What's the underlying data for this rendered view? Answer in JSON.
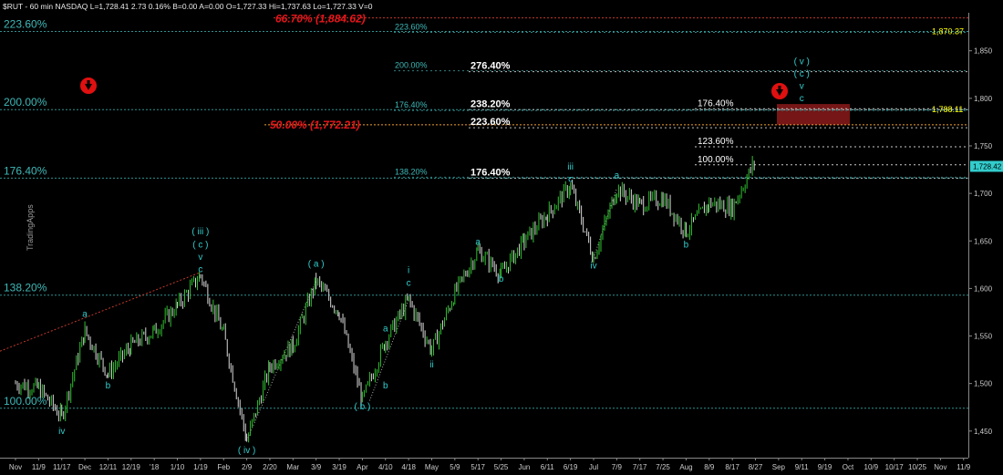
{
  "header": {
    "text": "$RUT - 60 min  NASDAQ  L=1,728.41  2.73  0.16%  B=0.00  A=0.00  O=1,727.33  Hi=1,737.63  Lo=1,727.33  V=0"
  },
  "watermark": "TradingApps",
  "colors": {
    "background": "#000000",
    "up_bar": "#2fbf2f",
    "down_bar": "#d9d9d9",
    "wave_label": "#33cccc",
    "fib_label": "#3fb8b8",
    "red_text": "#e8151b",
    "yellow_text": "#ffff00",
    "zone_fill": "#8b1a1a"
  },
  "chart_data": {
    "type": "line",
    "title": "",
    "subtitle": "",
    "xlabel": "",
    "ylabel": "",
    "ylim": [
      1422,
      1890
    ],
    "grid": false,
    "x_tick_labels": [
      "Nov",
      "11/9",
      "11/17",
      "Dec",
      "12/11",
      "12/19",
      "'18",
      "1/10",
      "1/19",
      "Feb",
      "2/9",
      "2/20",
      "Mar",
      "3/9",
      "3/19",
      "Apr",
      "4/10",
      "4/18",
      "May",
      "5/9",
      "5/17",
      "5/25",
      "Jun",
      "6/11",
      "6/19",
      "Jul",
      "7/9",
      "7/17",
      "7/25",
      "Aug",
      "8/9",
      "8/17",
      "8/27",
      "Sep",
      "9/11",
      "9/19",
      "Oct",
      "10/9",
      "10/17",
      "10/25",
      "Nov",
      "11/9"
    ],
    "y_tick_labels": [
      "1,450",
      "1,500",
      "1,550",
      "1,600",
      "1,650",
      "1,700",
      "1,750",
      "1,800",
      "1,850"
    ],
    "series": [
      {
        "values": [
          {
            "x": "Nov",
            "y": 1500
          },
          {
            "x": "11/9",
            "y": 1495
          },
          {
            "x": "11/17",
            "y": 1465
          },
          {
            "x": "Dec",
            "y": 1555
          },
          {
            "x": "12/11",
            "y": 1510
          },
          {
            "x": "12/19",
            "y": 1540
          },
          {
            "x": "'18",
            "y": 1555
          },
          {
            "x": "1/10",
            "y": 1582
          },
          {
            "x": "1/19",
            "y": 1614
          },
          {
            "x": "Feb",
            "y": 1552
          },
          {
            "x": "2/9",
            "y": 1440
          },
          {
            "x": "2/20",
            "y": 1518
          },
          {
            "x": "Mar",
            "y": 1540
          },
          {
            "x": "3/9",
            "y": 1608
          },
          {
            "x": "3/19",
            "y": 1575
          },
          {
            "x": "Apr",
            "y": 1482
          },
          {
            "x": "4/10",
            "y": 1545
          },
          {
            "x": "4/18",
            "y": 1588
          },
          {
            "x": "May",
            "y": 1535
          },
          {
            "x": "5/9",
            "y": 1595
          },
          {
            "x": "5/17",
            "y": 1640
          },
          {
            "x": "5/25",
            "y": 1615
          },
          {
            "x": "Jun",
            "y": 1650
          },
          {
            "x": "6/11",
            "y": 1678
          },
          {
            "x": "6/19",
            "y": 1708
          },
          {
            "x": "Jul",
            "y": 1632
          },
          {
            "x": "7/9",
            "y": 1705
          },
          {
            "x": "7/17",
            "y": 1688
          },
          {
            "x": "7/25",
            "y": 1695
          },
          {
            "x": "Aug",
            "y": 1660
          },
          {
            "x": "8/9",
            "y": 1690
          },
          {
            "x": "8/17",
            "y": 1685
          },
          {
            "x": "8/27",
            "y": 1735
          }
        ]
      }
    ],
    "fib_levels_left": [
      {
        "label": "223.60%",
        "y": 1870.37
      },
      {
        "label": "200.00%",
        "y": 1788.11
      },
      {
        "label": "176.40%",
        "y": 1716
      },
      {
        "label": "138.20%",
        "y": 1593
      },
      {
        "label": "100.00%",
        "y": 1474
      }
    ],
    "fib_levels_mid": [
      {
        "label": "223.60%",
        "y": 1870.37
      },
      {
        "label": "200.00%",
        "y": 1830
      },
      {
        "label": "176.40%",
        "y": 1788.11
      },
      {
        "label": "138.20%",
        "y": 1718
      }
    ],
    "fib_levels_white": [
      {
        "label": "276.40%",
        "y": 1830
      },
      {
        "label": "238.20%",
        "y": 1790
      },
      {
        "label": "223.60%",
        "y": 1771
      },
      {
        "label": "176.40%",
        "y": 1718
      }
    ],
    "fib_levels_right": [
      {
        "label": "176.40%",
        "y": 1790
      },
      {
        "label": "123.60%",
        "y": 1750
      },
      {
        "label": "100.00%",
        "y": 1731
      }
    ],
    "red_levels": [
      {
        "label": "66.70% (1,884.62)",
        "y": 1884.62
      },
      {
        "label": "50.00% (1,772.21)",
        "y": 1772.21
      }
    ],
    "price_tags": [
      {
        "label": "1,870.37",
        "y": 1870.37,
        "kind": "yellow"
      },
      {
        "label": "1,788.11",
        "y": 1788.11,
        "kind": "yellow"
      },
      {
        "label": "1,728.42",
        "y": 1728.42,
        "kind": "cyan"
      }
    ],
    "target_zone": {
      "y_low": 1772.21,
      "y_high": 1794
    },
    "wave_labels": [
      {
        "text": "iv",
        "x": "11/17",
        "y": 1447
      },
      {
        "text": "a",
        "x": "Dec",
        "y": 1570
      },
      {
        "text": "b",
        "x": "12/11",
        "y": 1495
      },
      {
        "text": "( iii )",
        "x": "1/19",
        "y": 1657
      },
      {
        "text": "( c )",
        "x": "1/19",
        "y": 1643
      },
      {
        "text": "v",
        "x": "1/19",
        "y": 1630
      },
      {
        "text": "c",
        "x": "1/19",
        "y": 1617
      },
      {
        "text": "( iv )",
        "x": "2/9",
        "y": 1427
      },
      {
        "text": "( a )",
        "x": "3/9",
        "y": 1623
      },
      {
        "text": "a",
        "x": "4/10",
        "y": 1555
      },
      {
        "text": "b",
        "x": "4/10",
        "y": 1495
      },
      {
        "text": "( b )",
        "x": "Apr",
        "y": 1473
      },
      {
        "text": "i",
        "x": "4/18",
        "y": 1616
      },
      {
        "text": "c",
        "x": "4/18",
        "y": 1603
      },
      {
        "text": "ii",
        "x": "May",
        "y": 1517
      },
      {
        "text": "a",
        "x": "5/17",
        "y": 1646
      },
      {
        "text": "b",
        "x": "5/25",
        "y": 1607
      },
      {
        "text": "iii",
        "x": "6/19",
        "y": 1725
      },
      {
        "text": "c",
        "x": "6/19",
        "y": 1712
      },
      {
        "text": "iv",
        "x": "Jul",
        "y": 1621
      },
      {
        "text": "a",
        "x": "7/9",
        "y": 1716
      },
      {
        "text": "b",
        "x": "Aug",
        "y": 1643
      },
      {
        "text": "( v )",
        "x": "9/11",
        "y": 1836
      },
      {
        "text": "( c )",
        "x": "9/11",
        "y": 1823
      },
      {
        "text": "v",
        "x": "9/11",
        "y": 1810
      },
      {
        "text": "c",
        "x": "9/11",
        "y": 1797
      }
    ]
  }
}
